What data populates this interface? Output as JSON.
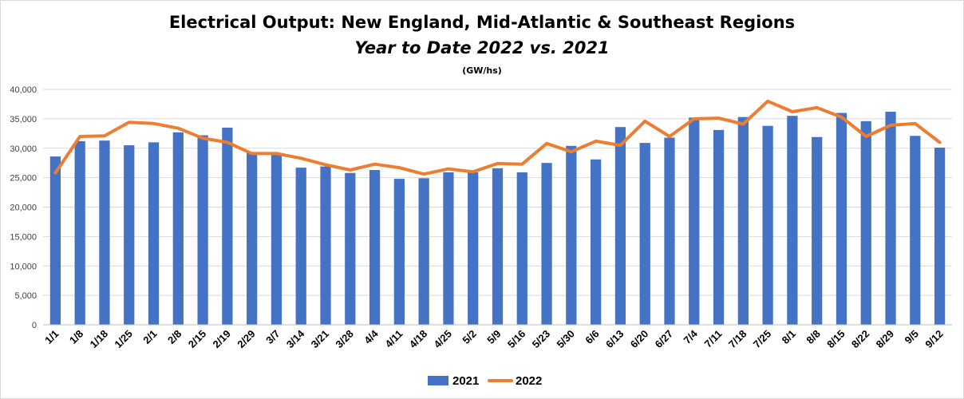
{
  "chart_data": {
    "type": "bar",
    "title": "Electrical Output:  New England, Mid-Atlantic & Southeast Regions",
    "subtitle": "Year to Date 2022 vs. 2021",
    "unit_label": "(GW/hs)",
    "categories": [
      "1/1",
      "1/8",
      "1/18",
      "1/25",
      "2/1",
      "2/8",
      "2/15",
      "2/19",
      "2/29",
      "3/7",
      "3/14",
      "3/21",
      "3/28",
      "4/4",
      "4/11",
      "4/18",
      "4/25",
      "5/2",
      "5/9",
      "5/16",
      "5/23",
      "5/30",
      "6/6",
      "6/13",
      "6/20",
      "6/27",
      "7/4",
      "7/11",
      "7/18",
      "7/25",
      "8/1",
      "8/8",
      "8/15",
      "8/22",
      "8/29",
      "9/5",
      "9/12"
    ],
    "yticks": [
      "0",
      "5,000",
      "10,000",
      "15,000",
      "20,000",
      "25,000",
      "30,000",
      "35,000",
      "40,000"
    ],
    "ylim": [
      0,
      40000
    ],
    "grid": true,
    "legend_position": "bottom",
    "series": [
      {
        "name": "2021",
        "type": "bar",
        "color": "#4472c4",
        "values": [
          28600,
          31200,
          31300,
          30500,
          31000,
          32700,
          32200,
          33500,
          29200,
          28900,
          26700,
          26900,
          25800,
          26300,
          24800,
          24900,
          25900,
          25900,
          26600,
          25900,
          27500,
          30400,
          28100,
          33600,
          30900,
          31800,
          35200,
          33100,
          35300,
          33800,
          35500,
          31900,
          36000,
          34600,
          36200,
          32100,
          30100
        ]
      },
      {
        "name": "2022",
        "type": "line",
        "color": "#ed7d31",
        "values": [
          25800,
          32000,
          32100,
          34400,
          34200,
          33400,
          31700,
          31000,
          29100,
          29100,
          28300,
          27200,
          26300,
          27300,
          26700,
          25600,
          26500,
          26000,
          27400,
          27300,
          30800,
          29400,
          31200,
          30500,
          34600,
          32000,
          35000,
          35100,
          34100,
          38000,
          36200,
          36900,
          35300,
          32000,
          33900,
          34200,
          31000
        ]
      }
    ]
  }
}
